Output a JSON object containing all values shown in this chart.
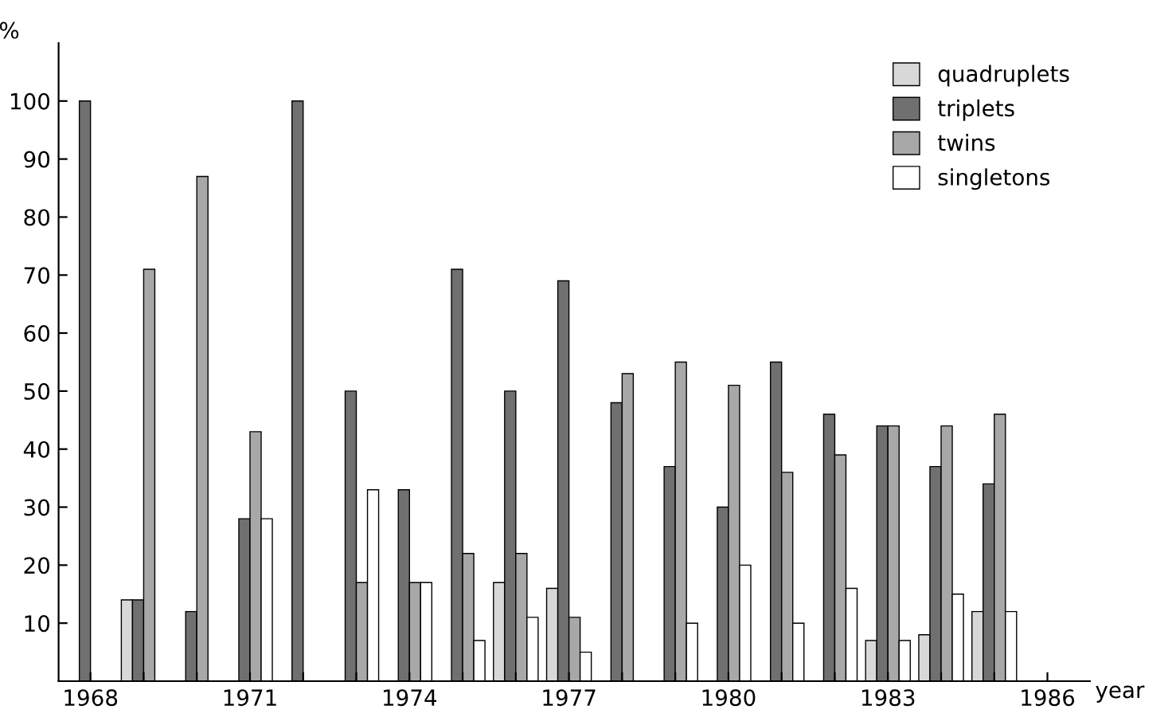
{
  "chart_data": {
    "type": "bar",
    "ylabel": "%",
    "xlabel": "year",
    "categories": [
      "1968",
      null,
      null,
      "1971",
      null,
      null,
      "1974",
      null,
      null,
      "1977",
      null,
      null,
      "1980",
      null,
      null,
      "1983",
      null,
      null,
      "1986"
    ],
    "series": [
      {
        "name": "quadruplets",
        "color": "#d8d8d8",
        "values": [
          null,
          14,
          null,
          null,
          null,
          null,
          null,
          null,
          17,
          16,
          null,
          null,
          null,
          null,
          null,
          7,
          8,
          12,
          null
        ]
      },
      {
        "name": "triplets",
        "color": "#707070",
        "values": [
          100,
          14,
          12,
          28,
          100,
          50,
          33,
          71,
          50,
          69,
          48,
          37,
          30,
          55,
          46,
          44,
          37,
          34,
          null
        ]
      },
      {
        "name": "twins",
        "color": "#a8a8a8",
        "values": [
          null,
          71,
          87,
          43,
          null,
          17,
          17,
          22,
          22,
          11,
          53,
          55,
          51,
          36,
          39,
          44,
          44,
          46,
          null
        ]
      },
      {
        "name": "singletons",
        "color": "#ffffff",
        "values": [
          null,
          null,
          null,
          28,
          null,
          33,
          17,
          7,
          11,
          5,
          null,
          10,
          20,
          10,
          16,
          7,
          15,
          12,
          null
        ]
      }
    ],
    "ylim": [
      0,
      110
    ],
    "yticks": [
      10,
      20,
      30,
      40,
      50,
      60,
      70,
      80,
      90,
      100
    ],
    "legend": "top right",
    "grid": false
  }
}
